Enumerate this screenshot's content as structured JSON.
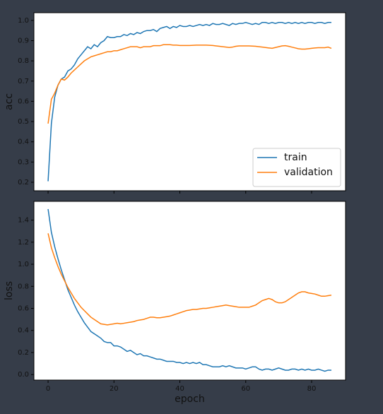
{
  "chart_data": [
    {
      "type": "line",
      "ylabel": "acc",
      "legend": "lower right",
      "x": [
        0,
        1,
        2,
        3,
        4,
        5,
        6,
        7,
        8,
        9,
        10,
        11,
        12,
        13,
        14,
        15,
        16,
        17,
        18,
        19,
        20,
        21,
        22,
        23,
        24,
        25,
        26,
        27,
        28,
        29,
        30,
        31,
        32,
        33,
        34,
        35,
        36,
        37,
        38,
        39,
        40,
        41,
        42,
        43,
        44,
        45,
        46,
        47,
        48,
        49,
        50,
        51,
        52,
        53,
        54,
        55,
        56,
        57,
        58,
        59,
        60,
        61,
        62,
        63,
        64,
        65,
        66,
        67,
        68,
        69,
        70,
        71,
        72,
        73,
        74,
        75,
        76,
        77,
        78,
        79,
        80,
        81,
        82,
        83,
        84,
        85,
        86
      ],
      "xlim": [
        -4.3,
        90.3
      ],
      "ylim": [
        0.158,
        1.038
      ],
      "yticks": [
        0.2,
        0.3,
        0.4,
        0.5,
        0.6,
        0.7,
        0.8,
        0.9,
        {
          "value": 1,
          "label": "1.0"
        }
      ],
      "series": [
        {
          "name": "train",
          "color": "#1f77b4",
          "values": [
            0.205,
            0.49,
            0.62,
            0.68,
            0.71,
            0.72,
            0.75,
            0.76,
            0.78,
            0.81,
            0.83,
            0.85,
            0.87,
            0.86,
            0.88,
            0.87,
            0.89,
            0.9,
            0.92,
            0.915,
            0.915,
            0.92,
            0.92,
            0.93,
            0.925,
            0.935,
            0.93,
            0.94,
            0.935,
            0.945,
            0.95,
            0.95,
            0.955,
            0.945,
            0.96,
            0.965,
            0.97,
            0.96,
            0.97,
            0.965,
            0.975,
            0.97,
            0.97,
            0.975,
            0.97,
            0.975,
            0.98,
            0.975,
            0.98,
            0.975,
            0.985,
            0.98,
            0.98,
            0.985,
            0.98,
            0.975,
            0.985,
            0.98,
            0.985,
            0.985,
            0.99,
            0.985,
            0.98,
            0.985,
            0.98,
            0.99,
            0.99,
            0.985,
            0.99,
            0.985,
            0.99,
            0.99,
            0.985,
            0.99,
            0.985,
            0.99,
            0.985,
            0.99,
            0.985,
            0.99,
            0.99,
            0.985,
            0.99,
            0.99,
            0.985,
            0.99,
            0.99
          ]
        },
        {
          "name": "validation",
          "color": "#ff7f0e",
          "values": [
            0.49,
            0.61,
            0.64,
            0.68,
            0.71,
            0.705,
            0.72,
            0.74,
            0.755,
            0.77,
            0.785,
            0.8,
            0.81,
            0.82,
            0.825,
            0.83,
            0.835,
            0.84,
            0.845,
            0.845,
            0.85,
            0.85,
            0.855,
            0.86,
            0.865,
            0.87,
            0.87,
            0.87,
            0.865,
            0.87,
            0.87,
            0.87,
            0.875,
            0.875,
            0.875,
            0.88,
            0.88,
            0.88,
            0.878,
            0.878,
            0.876,
            0.876,
            0.876,
            0.876,
            0.877,
            0.878,
            0.878,
            0.878,
            0.878,
            0.877,
            0.876,
            0.874,
            0.872,
            0.87,
            0.868,
            0.866,
            0.868,
            0.872,
            0.874,
            0.874,
            0.874,
            0.874,
            0.873,
            0.872,
            0.87,
            0.868,
            0.866,
            0.864,
            0.862,
            0.866,
            0.87,
            0.874,
            0.875,
            0.872,
            0.868,
            0.864,
            0.86,
            0.858,
            0.858,
            0.86,
            0.862,
            0.864,
            0.865,
            0.865,
            0.865,
            0.868,
            0.862
          ]
        }
      ]
    },
    {
      "type": "line",
      "ylabel": "loss",
      "xlabel": "epoch",
      "x": [
        0,
        1,
        2,
        3,
        4,
        5,
        6,
        7,
        8,
        9,
        10,
        11,
        12,
        13,
        14,
        15,
        16,
        17,
        18,
        19,
        20,
        21,
        22,
        23,
        24,
        25,
        26,
        27,
        28,
        29,
        30,
        31,
        32,
        33,
        34,
        35,
        36,
        37,
        38,
        39,
        40,
        41,
        42,
        43,
        44,
        45,
        46,
        47,
        48,
        49,
        50,
        51,
        52,
        53,
        54,
        55,
        56,
        57,
        58,
        59,
        60,
        61,
        62,
        63,
        64,
        65,
        66,
        67,
        68,
        69,
        70,
        71,
        72,
        73,
        74,
        75,
        76,
        77,
        78,
        79,
        80,
        81,
        82,
        83,
        84,
        85,
        86
      ],
      "xlim": [
        -4.3,
        90.3
      ],
      "ylim": [
        -0.05,
        1.57
      ],
      "xticks": [
        0,
        20,
        40,
        60,
        80
      ],
      "yticks": [
        {
          "value": 0,
          "label": "0.0"
        },
        0.2,
        0.4,
        0.6,
        0.8,
        {
          "value": 1,
          "label": "1.0"
        },
        1.2,
        1.4
      ],
      "series": [
        {
          "name": "train",
          "color": "#1f77b4",
          "values": [
            1.5,
            1.29,
            1.16,
            1.05,
            0.95,
            0.86,
            0.77,
            0.7,
            0.63,
            0.57,
            0.52,
            0.47,
            0.43,
            0.39,
            0.37,
            0.35,
            0.33,
            0.3,
            0.29,
            0.29,
            0.26,
            0.26,
            0.25,
            0.23,
            0.21,
            0.22,
            0.2,
            0.18,
            0.19,
            0.17,
            0.17,
            0.16,
            0.15,
            0.14,
            0.14,
            0.13,
            0.12,
            0.12,
            0.12,
            0.11,
            0.11,
            0.1,
            0.11,
            0.1,
            0.11,
            0.1,
            0.11,
            0.09,
            0.09,
            0.08,
            0.07,
            0.07,
            0.07,
            0.08,
            0.07,
            0.08,
            0.07,
            0.06,
            0.06,
            0.06,
            0.05,
            0.06,
            0.07,
            0.07,
            0.05,
            0.04,
            0.05,
            0.05,
            0.04,
            0.05,
            0.06,
            0.05,
            0.04,
            0.04,
            0.05,
            0.05,
            0.04,
            0.05,
            0.04,
            0.05,
            0.04,
            0.04,
            0.05,
            0.04,
            0.03,
            0.04,
            0.04
          ]
        },
        {
          "name": "validation",
          "color": "#ff7f0e",
          "values": [
            1.28,
            1.15,
            1.06,
            0.98,
            0.91,
            0.85,
            0.79,
            0.74,
            0.69,
            0.65,
            0.61,
            0.58,
            0.55,
            0.52,
            0.5,
            0.48,
            0.46,
            0.455,
            0.45,
            0.455,
            0.46,
            0.465,
            0.46,
            0.465,
            0.47,
            0.475,
            0.48,
            0.49,
            0.495,
            0.5,
            0.51,
            0.52,
            0.52,
            0.515,
            0.515,
            0.52,
            0.525,
            0.53,
            0.54,
            0.55,
            0.56,
            0.57,
            0.58,
            0.585,
            0.59,
            0.59,
            0.595,
            0.6,
            0.6,
            0.605,
            0.61,
            0.615,
            0.62,
            0.625,
            0.63,
            0.625,
            0.62,
            0.615,
            0.61,
            0.61,
            0.61,
            0.61,
            0.62,
            0.63,
            0.65,
            0.67,
            0.68,
            0.69,
            0.68,
            0.66,
            0.65,
            0.65,
            0.66,
            0.68,
            0.7,
            0.72,
            0.74,
            0.75,
            0.75,
            0.74,
            0.735,
            0.73,
            0.72,
            0.71,
            0.71,
            0.715,
            0.72
          ]
        }
      ]
    }
  ]
}
